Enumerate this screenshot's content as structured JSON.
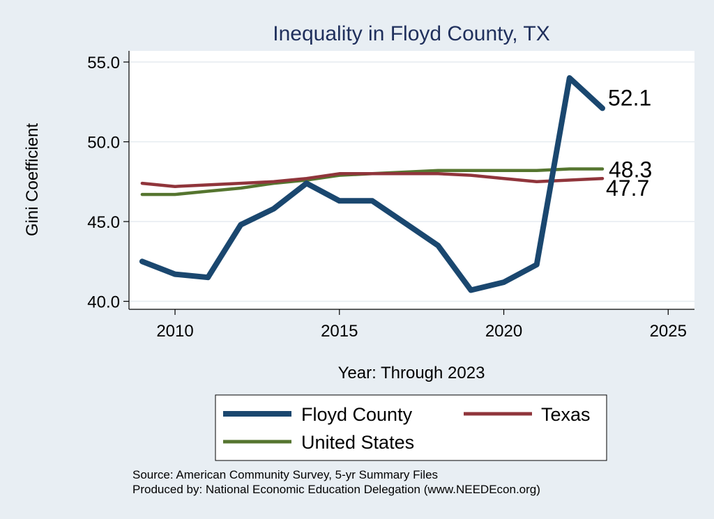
{
  "chart_data": {
    "type": "line",
    "title": "Inequality in Floyd County, TX",
    "xlabel": "Year: Through 2023",
    "ylabel": "Gini Coefficient",
    "xlim": [
      2008.6,
      2025.8
    ],
    "ylim": [
      39.5,
      55.7
    ],
    "xticks": [
      2010,
      2015,
      2020,
      2025
    ],
    "yticks": [
      40.0,
      45.0,
      50.0,
      55.0
    ],
    "ytick_labels": [
      "40.0",
      "45.0",
      "50.0",
      "55.0"
    ],
    "x": [
      2009,
      2010,
      2011,
      2012,
      2013,
      2014,
      2015,
      2016,
      2017,
      2018,
      2019,
      2020,
      2021,
      2022,
      2023
    ],
    "series": [
      {
        "name": "Floyd County",
        "color": "#1a476f",
        "values": [
          42.5,
          41.7,
          41.5,
          44.8,
          45.8,
          47.4,
          46.3,
          46.3,
          44.9,
          43.5,
          40.7,
          41.2,
          42.3,
          54.0,
          52.1
        ],
        "end_label": "52.1"
      },
      {
        "name": "Texas",
        "color": "#90353b",
        "values": [
          47.4,
          47.2,
          47.3,
          47.4,
          47.5,
          47.7,
          48.0,
          48.0,
          48.0,
          48.0,
          47.9,
          47.7,
          47.5,
          47.6,
          47.7
        ],
        "end_label": "47.7"
      },
      {
        "name": "United States",
        "color": "#55752f",
        "values": [
          46.7,
          46.7,
          46.9,
          47.1,
          47.4,
          47.6,
          47.9,
          48.0,
          48.1,
          48.2,
          48.2,
          48.2,
          48.2,
          48.3,
          48.3
        ],
        "end_label": "48.3"
      }
    ],
    "legend": [
      "Floyd County",
      "Texas",
      "United States"
    ],
    "legend_position": "bottom",
    "grid": true,
    "source_lines": [
      "Source: American Community Survey, 5-yr Summary Files",
      "Produced by: National Economic Education Delegation (www.NEEDEcon.org)"
    ]
  }
}
